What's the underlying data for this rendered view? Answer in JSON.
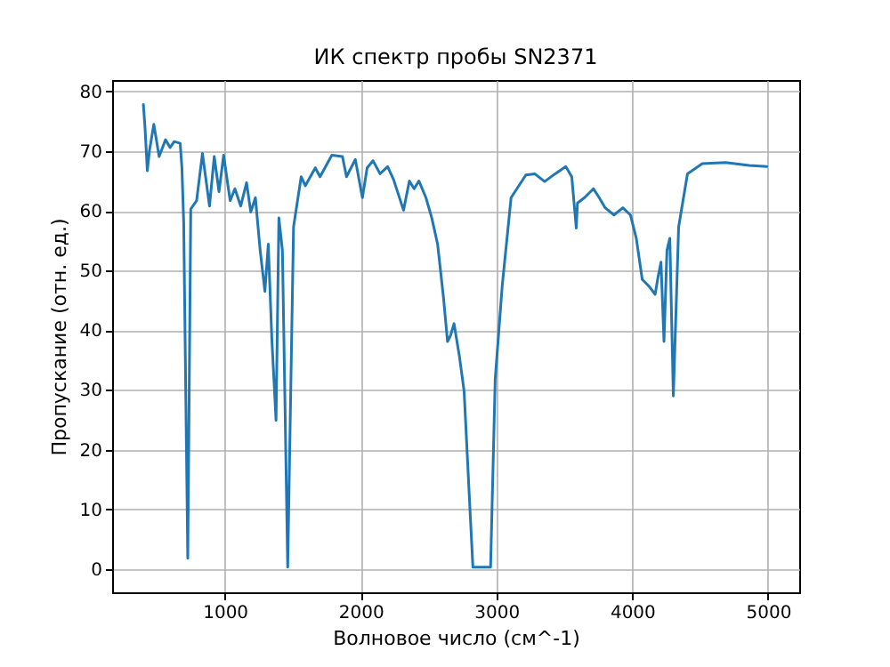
{
  "chart_data": {
    "type": "line",
    "title": "ИК спектр пробы SN2371",
    "xlabel": "Волновое число (см^-1)",
    "ylabel": "Пропускание (отн. ед.)",
    "x": [
      400,
      412,
      429,
      445,
      477,
      516,
      563,
      597,
      627,
      671,
      684,
      697,
      727,
      749,
      792,
      835,
      887,
      922,
      957,
      991,
      1039,
      1074,
      1117,
      1160,
      1191,
      1225,
      1260,
      1295,
      1320,
      1346,
      1377,
      1398,
      1424,
      1463,
      1506,
      1562,
      1593,
      1666,
      1701,
      1788,
      1866,
      1896,
      1961,
      2013,
      2048,
      2091,
      2143,
      2199,
      2243,
      2316,
      2359,
      2394,
      2429,
      2481,
      2524,
      2567,
      2610,
      2640,
      2662,
      2688,
      2727,
      2762,
      2805,
      2827,
      2957,
      2991,
      3043,
      3108,
      3217,
      3282,
      3355,
      3433,
      3511,
      3555,
      3588,
      3597,
      3649,
      3714,
      3757,
      3801,
      3866,
      3931,
      3987,
      4030,
      4074,
      4126,
      4169,
      4191,
      4212,
      4234,
      4256,
      4277,
      4303,
      4342,
      4407,
      4516,
      4688,
      4861,
      4991
    ],
    "series": [
      {
        "color": "#1f77b4",
        "values": [
          77.8,
          74.0,
          66.7,
          70.1,
          74.5,
          69.1,
          71.9,
          70.6,
          71.6,
          71.3,
          67.2,
          58.0,
          1.8,
          60.3,
          61.7,
          69.6,
          60.8,
          69.1,
          63.2,
          69.3,
          61.7,
          63.7,
          60.8,
          64.7,
          59.8,
          62.2,
          53.4,
          46.5,
          54.4,
          38.6,
          24.9,
          58.8,
          53.4,
          0.3,
          57.3,
          65.7,
          64.2,
          67.2,
          65.7,
          69.3,
          69.1,
          65.7,
          68.6,
          62.2,
          67.2,
          68.4,
          66.2,
          67.4,
          65.2,
          60.1,
          65.0,
          63.7,
          65.0,
          62.2,
          58.8,
          54.4,
          45.5,
          38.1,
          39.1,
          41.1,
          35.7,
          29.8,
          10.1,
          0.3,
          0.3,
          31.8,
          47.5,
          62.2,
          66.0,
          66.2,
          64.9,
          66.2,
          67.4,
          65.7,
          57.1,
          61.3,
          62.2,
          63.7,
          62.2,
          60.5,
          59.3,
          60.5,
          59.3,
          55.4,
          48.5,
          47.3,
          46.0,
          49.0,
          51.4,
          38.1,
          53.4,
          55.4,
          29.0,
          57.3,
          66.2,
          67.9,
          68.1,
          67.6,
          67.4
        ]
      }
    ],
    "xlim": [
      170,
      5230
    ],
    "ylim": [
      -3.9,
      81.9
    ],
    "xticks": [
      1000,
      2000,
      3000,
      4000,
      5000
    ],
    "yticks": [
      0,
      10,
      20,
      30,
      40,
      50,
      60,
      70,
      80
    ],
    "grid": true,
    "marker": "none",
    "line_style": "solid"
  }
}
